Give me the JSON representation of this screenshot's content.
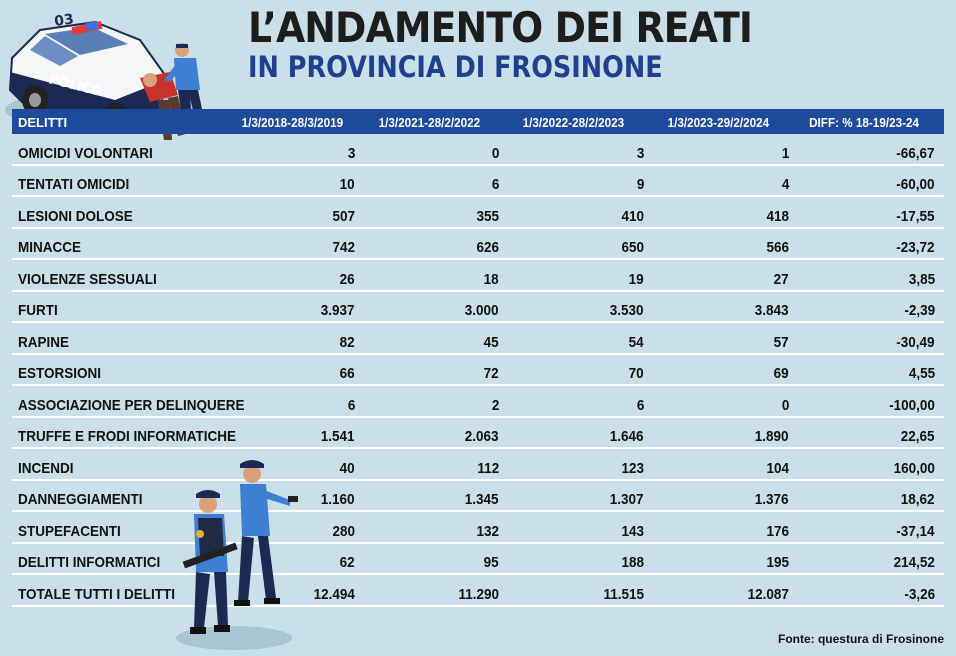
{
  "title": {
    "line1": "L’ANDAMENTO DEI REATI",
    "line2": "IN PROVINCIA DI FROSINONE"
  },
  "source": "Fonte: questura di Frosinone",
  "police_car_text": "POLICE",
  "police_car_roof_number": "03",
  "chart_data": {
    "type": "table",
    "columns": [
      "DELITTI",
      "1/3/2018-28/3/2019",
      "1/3/2021-28/2/2022",
      "1/3/2022-28/2/2023",
      "1/3/2023-29/2/2024",
      "DIFF: % 18-19/23-24"
    ],
    "rows": [
      [
        "OMICIDI VOLONTARI",
        "3",
        "0",
        "3",
        "1",
        "-66,67"
      ],
      [
        "TENTATI OMICIDI",
        "10",
        "6",
        "9",
        "4",
        "-60,00"
      ],
      [
        "LESIONI DOLOSE",
        "507",
        "355",
        "410",
        "418",
        "-17,55"
      ],
      [
        "MINACCE",
        "742",
        "626",
        "650",
        "566",
        "-23,72"
      ],
      [
        "VIOLENZE SESSUALI",
        "26",
        "18",
        "19",
        "27",
        "3,85"
      ],
      [
        "FURTI",
        "3.937",
        "3.000",
        "3.530",
        "3.843",
        "-2,39"
      ],
      [
        "RAPINE",
        "82",
        "45",
        "54",
        "57",
        "-30,49"
      ],
      [
        "ESTORSIONI",
        "66",
        "72",
        "70",
        "69",
        "4,55"
      ],
      [
        "ASSOCIAZIONE PER DELINQUERE",
        "6",
        "2",
        "6",
        "0",
        "-100,00"
      ],
      [
        "TRUFFE E FRODI INFORMATICHE",
        "1.541",
        "2.063",
        "1.646",
        "1.890",
        "22,65"
      ],
      [
        "INCENDI",
        "40",
        "112",
        "123",
        "104",
        "160,00"
      ],
      [
        "DANNEGGIAMENTI",
        "1.160",
        "1.345",
        "1.307",
        "1.376",
        "18,62"
      ],
      [
        "STUPEFACENTI",
        "280",
        "132",
        "143",
        "176",
        "-37,14"
      ],
      [
        "DELITTI INFORMATICI",
        "62",
        "95",
        "188",
        "195",
        "214,52"
      ],
      [
        "TOTALE TUTTI I DELITTI",
        "12.494",
        "11.290",
        "11.515",
        "12.087",
        "-3,26"
      ]
    ]
  },
  "colors": {
    "background": "#c9e0ea",
    "header": "#1d4a9b",
    "title": "#1d1d1b",
    "subtitle": "#1f3f8f"
  }
}
